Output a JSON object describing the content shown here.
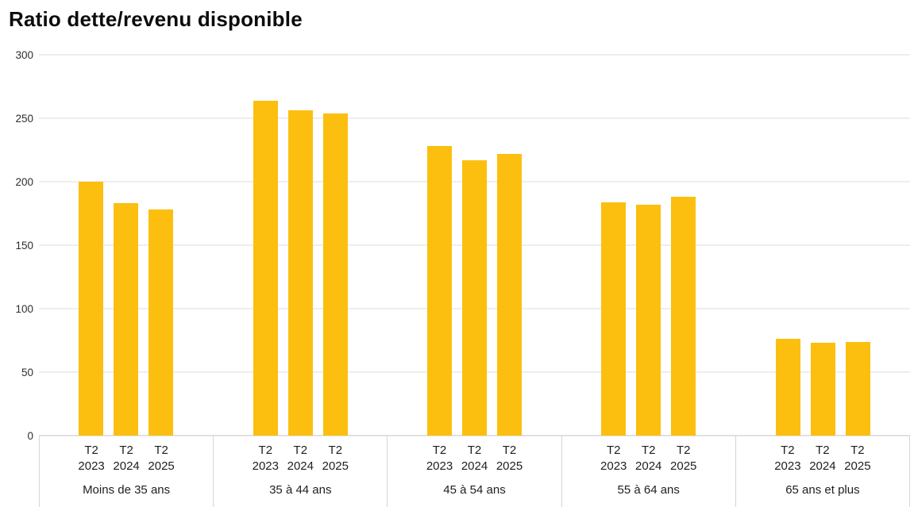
{
  "title": "Ratio dette/revenu disponible",
  "colors": {
    "bar": "#FCBF10",
    "gridline": "#DDDDDD",
    "axis_line": "#C3C3C3",
    "cell_border": "#D6D6D6",
    "title_text": "#0C0C0C",
    "tick_text": "#2E2E2E",
    "label_text": "#1E1E1E",
    "background": "#FFFFFF"
  },
  "chart_data": {
    "type": "bar",
    "title": "Ratio dette/revenu disponible",
    "xlabel": "",
    "ylabel": "",
    "ylim": [
      0,
      300
    ],
    "yticks": [
      0,
      50,
      100,
      150,
      200,
      250,
      300
    ],
    "grid": true,
    "legend_position": "none",
    "bar_color": "#FCBF10",
    "periods": [
      {
        "quarter": "T2",
        "year": "2023"
      },
      {
        "quarter": "T2",
        "year": "2024"
      },
      {
        "quarter": "T2",
        "year": "2025"
      }
    ],
    "groups": [
      {
        "label": "Moins de 35 ans",
        "values": [
          200,
          183,
          178
        ]
      },
      {
        "label": "35 à 44 ans",
        "values": [
          264,
          256,
          254
        ]
      },
      {
        "label": "45 à 54 ans",
        "values": [
          228,
          217,
          222
        ]
      },
      {
        "label": "55 à 64 ans",
        "values": [
          184,
          182,
          188
        ]
      },
      {
        "label": "65 ans et plus",
        "values": [
          76,
          73,
          74
        ]
      }
    ]
  }
}
